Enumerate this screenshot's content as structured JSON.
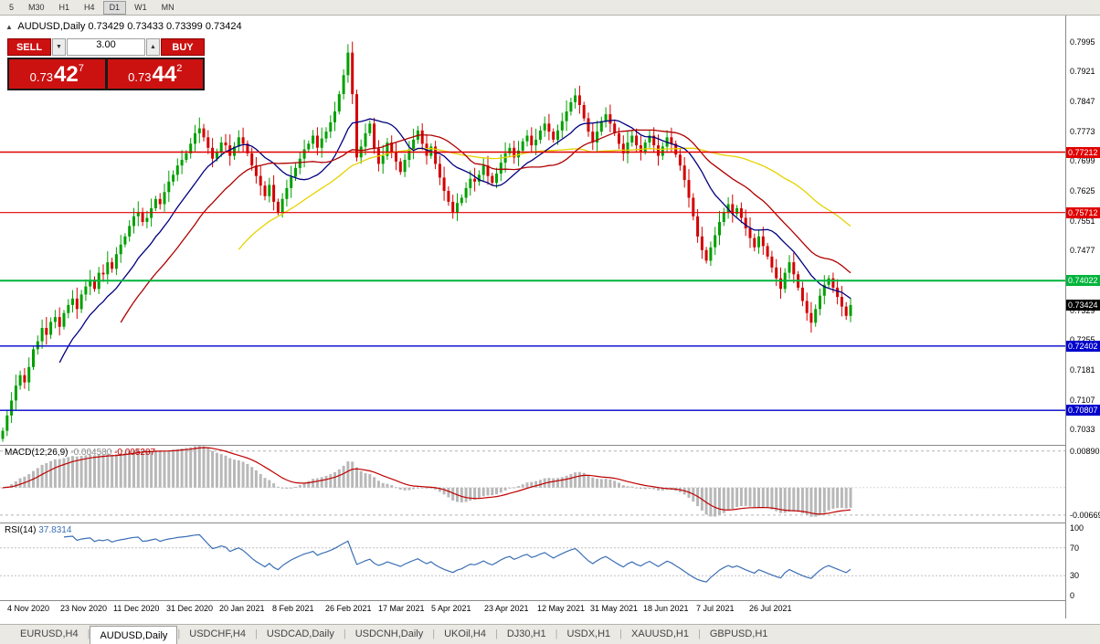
{
  "toolbar": {
    "timeframes": [
      "5",
      "M30",
      "H1",
      "H4",
      "D1",
      "W1",
      "MN"
    ],
    "active_timeframe": "D1"
  },
  "chart": {
    "title": "AUDUSD,Daily 0.73429 0.73433 0.73399 0.73424",
    "symbol": "AUDUSD,Daily",
    "open": "0.73429",
    "high": "0.73433",
    "low": "0.73399",
    "close": "0.73424"
  },
  "trade_panel": {
    "sell_label": "SELL",
    "buy_label": "BUY",
    "volume": "3.00",
    "sell_price_prefix": "0.73",
    "sell_price_big": "42",
    "sell_price_sup": "7",
    "buy_price_prefix": "0.73",
    "buy_price_big": "44",
    "buy_price_sup": "2"
  },
  "colors": {
    "candle_up": "#00a000",
    "candle_down": "#d40000",
    "macd_hist": "#b8b8b8",
    "macd_signal": "#c00000",
    "rsi_line": "#3b6fb5",
    "trade_red": "#cc1111"
  },
  "tabs_bar": {
    "tabs": [
      "EURUSD,H4",
      "AUDUSD,Daily",
      "USDCHF,H4",
      "USDCAD,Daily",
      "USDCNH,Daily",
      "UKOil,H4",
      "DJ30,H1",
      "USDX,H1",
      "XAUUSD,H1",
      "GBPUSD,H1"
    ],
    "active_tab": "AUDUSD,Daily"
  },
  "chart_data": {
    "type": "candlestick",
    "title": "AUDUSD Daily",
    "x_labels": [
      "4 Nov 2020",
      "23 Nov 2020",
      "11 Dec 2020",
      "31 Dec 2020",
      "20 Jan 2021",
      "8 Feb 2021",
      "26 Feb 2021",
      "17 Mar 2021",
      "5 Apr 2021",
      "23 Apr 2021",
      "12 May 2021",
      "31 May 2021",
      "18 Jun 2021",
      "7 Jul 2021",
      "26 Jul 2021"
    ],
    "open_rule": "open equals previous close",
    "y_range": [
      0.6995,
      0.806
    ],
    "y_ticks": [
      0.7995,
      0.7921,
      0.7847,
      0.7773,
      0.7699,
      0.7625,
      0.7551,
      0.7477,
      0.7403,
      0.7329,
      0.7255,
      0.7181,
      0.7107,
      0.7033
    ],
    "current_price": 0.73424,
    "current_price_label": "0.73424",
    "close": [
      0.703,
      0.7068,
      0.7105,
      0.7142,
      0.7168,
      0.715,
      0.7188,
      0.7232,
      0.7252,
      0.7285,
      0.7268,
      0.73,
      0.7312,
      0.7288,
      0.7322,
      0.7342,
      0.7358,
      0.7332,
      0.7368,
      0.7388,
      0.7405,
      0.7382,
      0.7422,
      0.7418,
      0.7448,
      0.7432,
      0.7468,
      0.7492,
      0.7512,
      0.7538,
      0.7562,
      0.7572,
      0.7548,
      0.7558,
      0.7582,
      0.7605,
      0.7592,
      0.7622,
      0.7648,
      0.7665,
      0.7688,
      0.7702,
      0.7718,
      0.7742,
      0.7768,
      0.778,
      0.7758,
      0.7732,
      0.7705,
      0.7722,
      0.7745,
      0.7738,
      0.7712,
      0.7735,
      0.7758,
      0.7742,
      0.7718,
      0.7688,
      0.7662,
      0.7638,
      0.7612,
      0.764,
      0.7598,
      0.7572,
      0.7605,
      0.7632,
      0.766,
      0.7682,
      0.7705,
      0.7728,
      0.7742,
      0.7762,
      0.7732,
      0.7755,
      0.7772,
      0.7795,
      0.7822,
      0.7865,
      0.7912,
      0.7968,
      0.7865,
      0.7708,
      0.7735,
      0.7768,
      0.7792,
      0.773,
      0.7692,
      0.7712,
      0.7745,
      0.7722,
      0.7698,
      0.7672,
      0.7702,
      0.7728,
      0.7752,
      0.7775,
      0.7742,
      0.7712,
      0.7735,
      0.7692,
      0.7658,
      0.7625,
      0.7598,
      0.7572,
      0.7595,
      0.7608,
      0.7632,
      0.7655,
      0.7648,
      0.7665,
      0.7688,
      0.7662,
      0.7645,
      0.7668,
      0.7695,
      0.7718,
      0.7732,
      0.7708,
      0.7725,
      0.7748,
      0.7762,
      0.7738,
      0.7752,
      0.7775,
      0.7792,
      0.7772,
      0.7752,
      0.7775,
      0.7798,
      0.7822,
      0.7845,
      0.7862,
      0.7838,
      0.7805,
      0.7772,
      0.7745,
      0.7772,
      0.7798,
      0.7815,
      0.7792,
      0.7768,
      0.7742,
      0.7718,
      0.7745,
      0.7762,
      0.7738,
      0.7722,
      0.7745,
      0.7762,
      0.7738,
      0.7712,
      0.7735,
      0.7758,
      0.7742,
      0.7715,
      0.7688,
      0.7652,
      0.7608,
      0.7562,
      0.7512,
      0.7478,
      0.7452,
      0.7485,
      0.7515,
      0.7548,
      0.7572,
      0.7592,
      0.7568,
      0.7582,
      0.7558,
      0.7532,
      0.7508,
      0.7485,
      0.7512,
      0.7488,
      0.7462,
      0.7435,
      0.7408,
      0.7382,
      0.7422,
      0.7448,
      0.7418,
      0.7385,
      0.7352,
      0.7322,
      0.7298,
      0.7332,
      0.7365,
      0.7392,
      0.7408,
      0.7385,
      0.7362,
      0.7338,
      0.7315,
      0.7342
    ],
    "levels": [
      {
        "price": 0.77212,
        "label": "0.77212",
        "color": "#e00000",
        "width": 1.6
      },
      {
        "price": 0.75712,
        "label": "0.75712",
        "color": "#e00000",
        "width": 1.2
      },
      {
        "price": 0.74022,
        "label": "0.74022",
        "color": "#00b43c",
        "width": 2
      },
      {
        "price": 0.72402,
        "label": "0.72402",
        "color": "#0000cc",
        "width": 1.4
      },
      {
        "price": 0.70807,
        "label": "0.70807",
        "color": "#0000cc",
        "width": 1.4
      }
    ],
    "moving_averages": [
      {
        "period": 55,
        "color": "#e6d200"
      },
      {
        "period": 14,
        "color": "#000080"
      },
      {
        "period": 28,
        "color": "#b00000"
      }
    ],
    "indicators": {
      "macd": {
        "name": "MACD(12,26,9)",
        "main_value": "-0.004580",
        "signal_value": "-0.005207",
        "fast": 12,
        "slow": 26,
        "signal": 9,
        "axis_max": 0.0089,
        "axis_max_label": "0.00890",
        "axis_min": -0.00669,
        "axis_min_label": "-0.00669"
      },
      "rsi": {
        "name": "RSI(14)",
        "value": "37.8314",
        "period": 14,
        "upper_level": 70,
        "lower_level": 30,
        "axis_top_label": "100",
        "axis_upper_label": "70",
        "axis_lower_label": "30",
        "axis_bottom_label": "0"
      }
    }
  }
}
